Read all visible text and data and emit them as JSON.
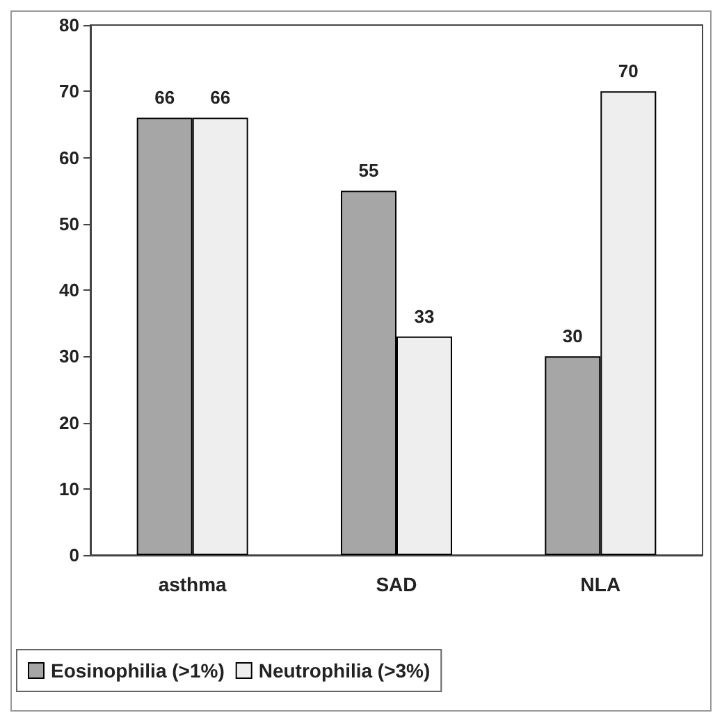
{
  "chart_data": {
    "type": "bar",
    "categories": [
      "asthma",
      "SAD",
      "NLA"
    ],
    "series": [
      {
        "name": "Eosinophilia (>1%)",
        "color": "#a6a6a6",
        "values": [
          66,
          55,
          30
        ]
      },
      {
        "name": "Neutrophilia (>3%)",
        "color": "#eeeeee",
        "values": [
          66,
          33,
          70
        ]
      }
    ],
    "ylim": [
      0,
      80
    ],
    "yticks": [
      0,
      10,
      20,
      30,
      40,
      50,
      60,
      70,
      80
    ],
    "grid": false,
    "legend": "bottom",
    "data_labels": true
  }
}
